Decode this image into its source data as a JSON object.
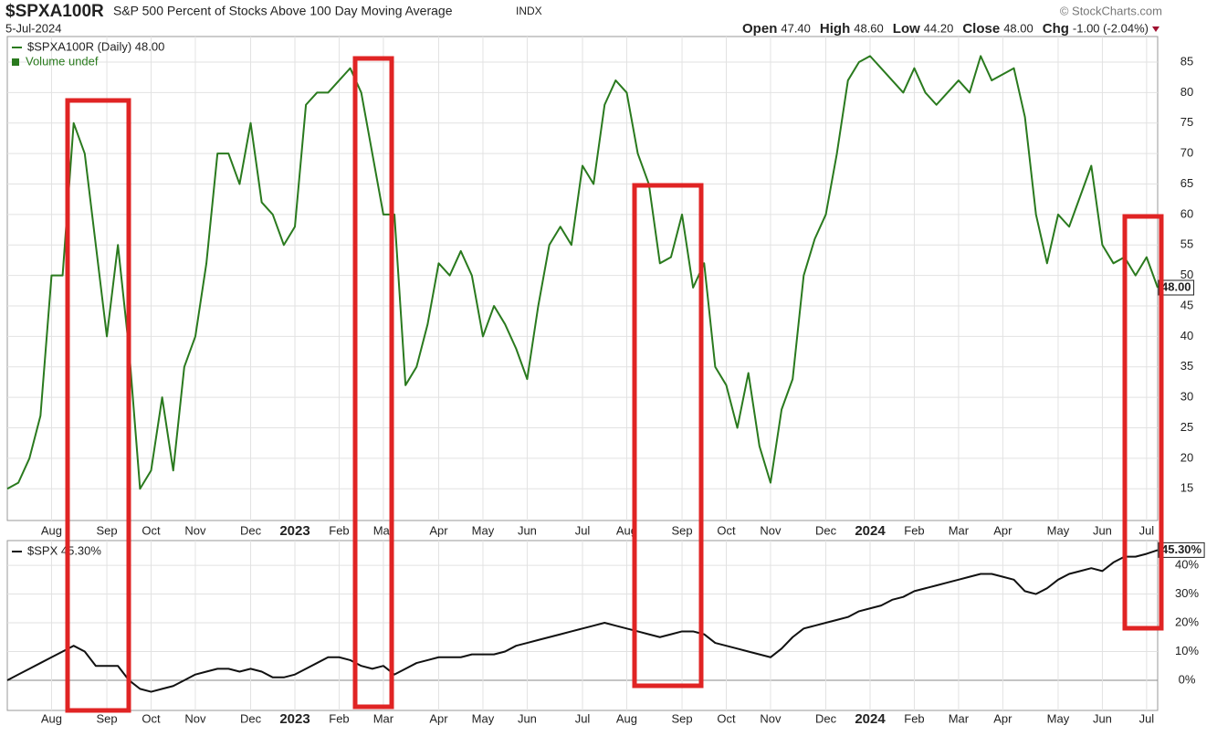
{
  "header": {
    "symbol": "$SPXA100R",
    "title": "S&P 500 Percent of Stocks Above 100 Day Moving Average",
    "exchange": "INDX",
    "source": "© StockCharts.com",
    "date": "5-Jul-2024",
    "quote": [
      {
        "label": "Open",
        "value": "47.40"
      },
      {
        "label": "High",
        "value": "48.60"
      },
      {
        "label": "Low",
        "value": "44.20"
      },
      {
        "label": "Close",
        "value": "48.00"
      },
      {
        "label": "Chg",
        "value": "-1.00 (-2.04%)"
      }
    ]
  },
  "chart_data": [
    {
      "type": "line",
      "legend_note": "Volume undef",
      "last_label": "48.00",
      "categories": [
        null,
        null,
        null,
        null,
        "Aug",
        null,
        null,
        null,
        null,
        "Sep",
        null,
        null,
        null,
        "Oct",
        null,
        null,
        null,
        "Nov",
        null,
        null,
        null,
        null,
        "Dec",
        null,
        null,
        null,
        "2023",
        null,
        null,
        null,
        "Feb",
        null,
        null,
        null,
        "Mar",
        null,
        null,
        null,
        null,
        "Apr",
        null,
        null,
        null,
        "May",
        null,
        null,
        null,
        "Jun",
        null,
        null,
        null,
        null,
        "Jul",
        null,
        null,
        null,
        "Aug",
        null,
        null,
        null,
        null,
        "Sep",
        null,
        null,
        null,
        "Oct",
        null,
        null,
        null,
        "Nov",
        null,
        null,
        null,
        null,
        "Dec",
        null,
        null,
        null,
        "2024",
        null,
        null,
        null,
        "Feb",
        null,
        null,
        null,
        "Mar",
        null,
        null,
        null,
        "Apr",
        null,
        null,
        null,
        null,
        "May",
        null,
        null,
        null,
        "Jun",
        null,
        null,
        null,
        "Jul",
        null
      ],
      "series": [
        {
          "name": "$SPXA100R (Daily) 48.00",
          "color": "#2a7a1e",
          "values": [
            15,
            16,
            20,
            27,
            50,
            50,
            75,
            70,
            55,
            40,
            55,
            38,
            15,
            18,
            30,
            18,
            35,
            40,
            52,
            70,
            70,
            65,
            75,
            62,
            60,
            55,
            58,
            78,
            80,
            80,
            82,
            84,
            80,
            70,
            60,
            60,
            32,
            35,
            42,
            52,
            50,
            54,
            50,
            40,
            45,
            42,
            38,
            33,
            45,
            55,
            58,
            55,
            68,
            65,
            78,
            82,
            80,
            70,
            65,
            52,
            53,
            60,
            48,
            52,
            35,
            32,
            25,
            34,
            22,
            16,
            28,
            33,
            50,
            56,
            60,
            70,
            82,
            85,
            86,
            84,
            82,
            80,
            84,
            80,
            78,
            80,
            82,
            80,
            86,
            82,
            83,
            84,
            76,
            60,
            52,
            60,
            58,
            63,
            68,
            55,
            52,
            53,
            50,
            53,
            48
          ]
        }
      ],
      "ylim": [
        9.8,
        89.2
      ],
      "yticks": [
        15,
        20,
        25,
        30,
        35,
        40,
        45,
        50,
        55,
        60,
        65,
        70,
        75,
        80,
        85
      ],
      "grid": true
    },
    {
      "type": "line",
      "last_label": "45.30%",
      "categories": [
        null,
        null,
        null,
        null,
        "Aug",
        null,
        null,
        null,
        null,
        "Sep",
        null,
        null,
        null,
        "Oct",
        null,
        null,
        null,
        "Nov",
        null,
        null,
        null,
        null,
        "Dec",
        null,
        null,
        null,
        "2023",
        null,
        null,
        null,
        "Feb",
        null,
        null,
        null,
        "Mar",
        null,
        null,
        null,
        null,
        "Apr",
        null,
        null,
        null,
        "May",
        null,
        null,
        null,
        "Jun",
        null,
        null,
        null,
        null,
        "Jul",
        null,
        null,
        null,
        "Aug",
        null,
        null,
        null,
        null,
        "Sep",
        null,
        null,
        null,
        "Oct",
        null,
        null,
        null,
        "Nov",
        null,
        null,
        null,
        null,
        "Dec",
        null,
        null,
        null,
        "2024",
        null,
        null,
        null,
        "Feb",
        null,
        null,
        null,
        "Mar",
        null,
        null,
        null,
        "Apr",
        null,
        null,
        null,
        null,
        "May",
        null,
        null,
        null,
        "Jun",
        null,
        null,
        null,
        "Jul",
        null
      ],
      "series": [
        {
          "name": "$SPX 45.30%",
          "color": "#111111",
          "values": [
            0,
            2,
            4,
            6,
            8,
            10,
            12,
            10,
            5,
            5,
            5,
            0,
            -3,
            -4,
            -3,
            -2,
            0,
            2,
            3,
            4,
            4,
            3,
            4,
            3,
            1,
            1,
            2,
            4,
            6,
            8,
            8,
            7,
            5,
            4,
            5,
            2,
            4,
            6,
            7,
            8,
            8,
            8,
            9,
            9,
            9,
            10,
            12,
            13,
            14,
            15,
            16,
            17,
            18,
            19,
            20,
            19,
            18,
            17,
            16,
            15,
            16,
            17,
            17,
            16,
            13,
            12,
            11,
            10,
            9,
            8,
            11,
            15,
            18,
            19,
            20,
            21,
            22,
            24,
            25,
            26,
            28,
            29,
            31,
            32,
            33,
            34,
            35,
            36,
            37,
            37,
            36,
            35,
            31,
            30,
            32,
            35,
            37,
            38,
            39,
            38,
            41,
            43,
            43,
            44,
            45.3
          ]
        }
      ],
      "ylim": [
        -10.5,
        48.6
      ],
      "yticks": [
        {
          "value": 0,
          "label": "0%"
        },
        {
          "value": 10,
          "label": "10%"
        },
        {
          "value": 20,
          "label": "20%"
        },
        {
          "value": 30,
          "label": "30%"
        },
        {
          "value": 40,
          "label": "40%"
        }
      ],
      "grid": true
    }
  ]
}
